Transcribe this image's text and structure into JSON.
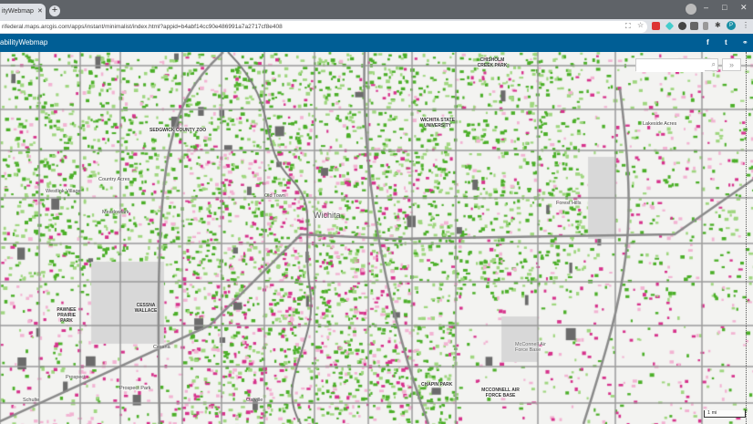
{
  "browser": {
    "tab_title": "ityWebmap",
    "tab_close": "✕",
    "new_tab": "+",
    "url": "rifederal.maps.arcgis.com/apps/instant/minimalist/index.html?appid=b4abf14cc90e486991a7a2717cf8e408",
    "profile_initial": "P",
    "window_controls": [
      "–",
      "□",
      "✕"
    ]
  },
  "header": {
    "title": "abilityWebmap",
    "icons": [
      "facebook-icon",
      "twitter-icon",
      "link-icon"
    ]
  },
  "search": {
    "placeholder": "",
    "value": ""
  },
  "scale_label": "1 mi",
  "colors": {
    "header": "#005e95",
    "green": "#4caf29",
    "light_green": "#9fd67f",
    "magenta": "#d6338c",
    "pink": "#f2b3d2"
  },
  "labels": {
    "zoo": "SEDGWICK COUNTY ZOO",
    "westlink": "Westlink Village",
    "country_acres": "Country Acres",
    "meadowlark": "Meadowlark",
    "wichita": "Wichita",
    "old_town": "Old Town",
    "wsu": "WICHITA STATE UNIVERSITY",
    "chisholm": "CHISHOLM CREEK PARK",
    "lakeside": "Lakeside Acres",
    "forest_hills": "Forest Hills",
    "pawnee": "PAWNEE PRAIRIE PARK",
    "cessna_wallace": "CESSNA WALLACE",
    "cessna": "Cessna",
    "prospect": "Prospect",
    "prospect_park": "Prospect Park",
    "schulte": "Schulte",
    "oatville": "Oatville",
    "chapin": "CHAPIN PARK",
    "mcconnell": "McConnell Air Force Base",
    "mcconnell_bold": "MCCONNELL AIR FORCE BASE"
  }
}
